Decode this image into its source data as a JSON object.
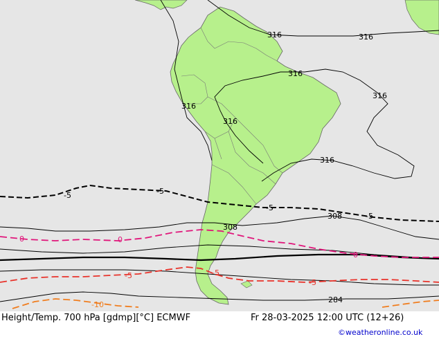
{
  "title": "Height/Temp. 700 hPa [gdmp][°C] ECMWF",
  "valid_time": "Fr 28-03-2025 12:00 UTC (12+26)",
  "credit": "©weatheronline.co.uk",
  "colors": {
    "ocean": "#e6e6e6",
    "land": "#b7f08c",
    "height_contour": "#000000",
    "temp_minus5": "#000000",
    "temp_0": "#e0157a",
    "temp_minus5_south": "#e8322a",
    "temp_minus10": "#f07d1e",
    "footer_bg": "#ffffff"
  },
  "labels": {
    "h316_a": "316",
    "h316_b": "316",
    "h316_c": "316",
    "h316_d": "316",
    "h316_e": "316",
    "h316_f": "316",
    "h316_g": "316",
    "h308_a": "308",
    "h308_b": "308",
    "h284": "284",
    "t_m5_a": "-5",
    "t_m5_b": "-5",
    "t_m5_c": "-5",
    "t_m5_d": "-5",
    "t_0_a": "0",
    "t_0_b": "0",
    "t_0_c": "0",
    "t_m5s_a": "-5",
    "t_m5s_b": "-5",
    "t_m5s_c": "-5",
    "t_m10": "-10"
  }
}
